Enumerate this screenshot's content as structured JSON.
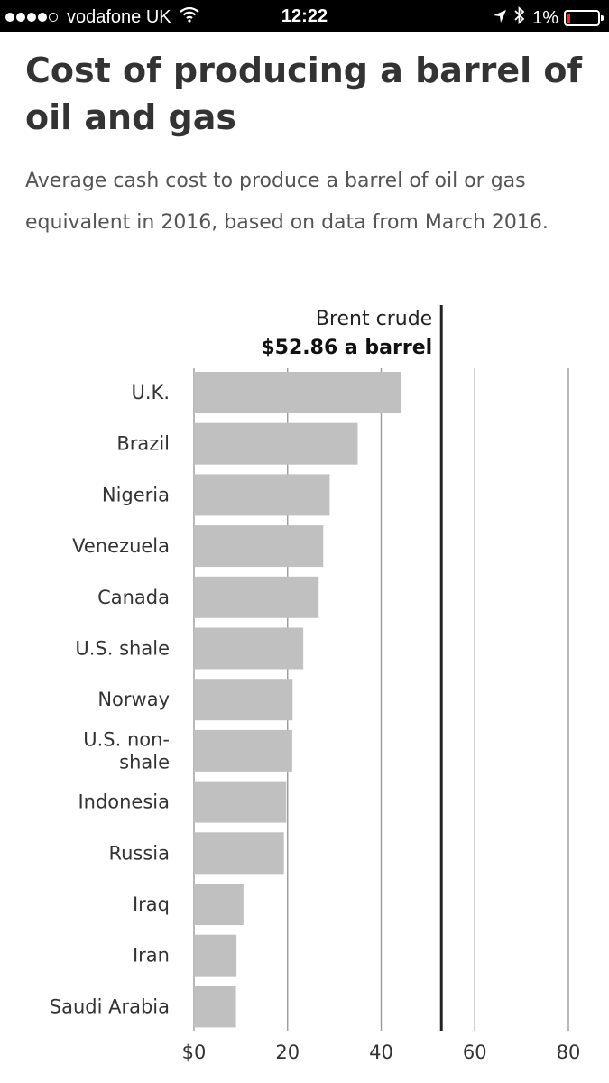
{
  "status_bar": {
    "carrier": "vodafone UK",
    "time": "12:22",
    "battery": "1%",
    "signal_bars_filled": 4,
    "signal_bars_total": 5
  },
  "colors": {
    "bar": "#c0c0c0",
    "grid": "#9a9a9a",
    "reference_line": "#222222",
    "battery_low": "#e0322b"
  },
  "chart_data": {
    "type": "bar",
    "orientation": "horizontal",
    "title": "Cost of producing a barrel of oil and gas",
    "subtitle": "Average cash cost to produce a barrel of oil or gas equivalent in 2016, based on data from March 2016.",
    "categories": [
      "U.K.",
      "Brazil",
      "Nigeria",
      "Venezuela",
      "Canada",
      "U.S. shale",
      "Norway",
      "U.S. non-shale",
      "Indonesia",
      "Russia",
      "Iraq",
      "Iran",
      "Saudi Arabia"
    ],
    "category_lines": [
      [
        "U.K."
      ],
      [
        "Brazil"
      ],
      [
        "Nigeria"
      ],
      [
        "Venezuela"
      ],
      [
        "Canada"
      ],
      [
        "U.S. shale"
      ],
      [
        "Norway"
      ],
      [
        "U.S. non-",
        "shale"
      ],
      [
        "Indonesia"
      ],
      [
        "Russia"
      ],
      [
        "Iraq"
      ],
      [
        "Iran"
      ],
      [
        "Saudi Arabia"
      ]
    ],
    "values": [
      44.3,
      34.99,
      28.99,
      27.62,
      26.64,
      23.35,
      21.07,
      20.99,
      19.71,
      19.21,
      10.57,
      9.08,
      8.98
    ],
    "xlim": [
      0,
      80
    ],
    "ticks": [
      0,
      20,
      40,
      60,
      80
    ],
    "tick_labels": [
      "$0",
      "20",
      "40",
      "60",
      "80"
    ],
    "grid": true,
    "reference": {
      "value": 52.86,
      "label": "Brent crude",
      "value_label": "$52.86 a barrel"
    }
  }
}
